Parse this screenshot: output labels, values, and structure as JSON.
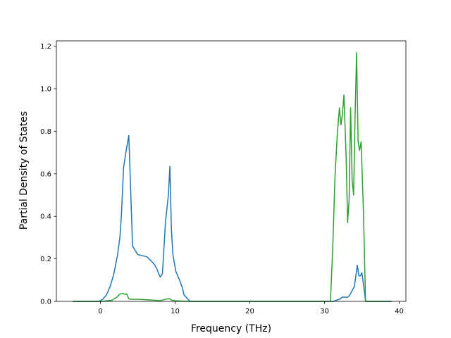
{
  "chart_data": {
    "type": "line",
    "title": "",
    "xlabel": "Frequency (THz)",
    "ylabel": "Partial Density of States",
    "xlim": [
      -5.9,
      40.9
    ],
    "ylim": [
      0,
      1.225
    ],
    "xticks": [
      0,
      10,
      20,
      30,
      40
    ],
    "yticks": [
      0.0,
      0.2,
      0.4,
      0.6,
      0.8,
      1.0,
      1.2
    ],
    "grid": false,
    "legend": "none",
    "series": [
      {
        "color": "#1f77b4",
        "x": [
          -3.7,
          -0.2,
          0.3,
          0.8,
          1.3,
          1.8,
          2.3,
          2.6,
          2.8,
          3.1,
          3.4,
          3.6,
          3.8,
          4.3,
          5.0,
          5.6,
          6.2,
          6.8,
          7.2,
          7.6,
          7.8,
          8.0,
          8.3,
          8.7,
          9.1,
          9.3,
          9.5,
          9.7,
          10.1,
          10.6,
          11.0,
          11.2,
          12.0,
          31.2,
          31.6,
          32.0,
          32.4,
          32.8,
          33.0,
          33.3,
          33.7,
          34.0,
          34.2,
          34.4,
          34.6,
          34.8,
          35.0,
          35.3,
          35.5,
          36.5,
          39.0
        ],
        "y": [
          0.0,
          0.0,
          0.01,
          0.03,
          0.07,
          0.13,
          0.22,
          0.3,
          0.4,
          0.63,
          0.7,
          0.74,
          0.78,
          0.26,
          0.22,
          0.215,
          0.21,
          0.19,
          0.175,
          0.15,
          0.13,
          0.115,
          0.13,
          0.37,
          0.5,
          0.635,
          0.34,
          0.22,
          0.14,
          0.1,
          0.06,
          0.03,
          0.0,
          0.0,
          0.005,
          0.01,
          0.02,
          0.02,
          0.018,
          0.025,
          0.05,
          0.07,
          0.12,
          0.17,
          0.12,
          0.12,
          0.135,
          0.06,
          0.0,
          0.0,
          0.0
        ]
      },
      {
        "color": "#2ca02c",
        "x": [
          -3.7,
          0.0,
          1.5,
          2.2,
          2.6,
          3.0,
          3.3,
          3.5,
          3.8,
          4.2,
          5.0,
          7.0,
          8.0,
          8.5,
          9.0,
          9.3,
          9.6,
          10.0,
          12.0,
          30.8,
          31.1,
          31.4,
          31.7,
          32.0,
          32.2,
          32.4,
          32.6,
          32.9,
          33.1,
          33.3,
          33.5,
          33.7,
          33.9,
          34.1,
          34.3,
          34.5,
          34.7,
          34.9,
          35.2,
          35.5,
          36.0,
          39.0
        ],
        "y": [
          0.0,
          0.0,
          0.005,
          0.02,
          0.035,
          0.037,
          0.033,
          0.036,
          0.012,
          0.01,
          0.01,
          0.006,
          0.003,
          0.008,
          0.012,
          0.012,
          0.005,
          0.003,
          0.0,
          0.0,
          0.25,
          0.58,
          0.78,
          0.91,
          0.83,
          0.88,
          0.97,
          0.68,
          0.37,
          0.48,
          0.91,
          0.57,
          0.5,
          0.88,
          1.17,
          0.75,
          0.71,
          0.75,
          0.44,
          0.0,
          0.0,
          0.0
        ]
      }
    ]
  }
}
